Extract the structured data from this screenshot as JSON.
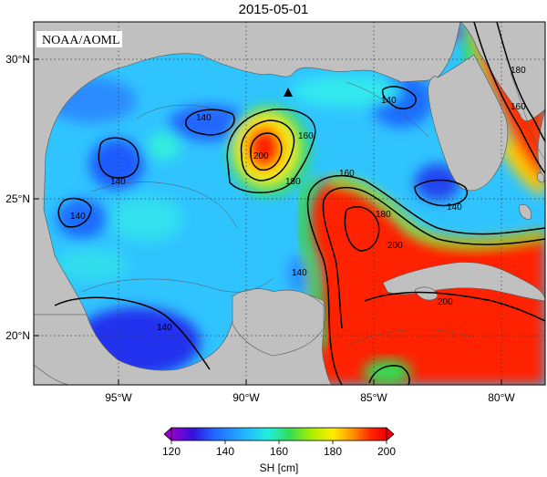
{
  "title": "2015-05-01",
  "credit": "NOAA/AOML",
  "map": {
    "lat_ticks": [
      "30°N",
      "25°N",
      "20°N"
    ],
    "lon_ticks": [
      "95°W",
      "90°W",
      "85°W",
      "80°W"
    ],
    "contour_labels": [
      "140",
      "140",
      "140",
      "140",
      "140",
      "140",
      "140",
      "160",
      "160",
      "160",
      "180",
      "180",
      "180",
      "200",
      "200",
      "200"
    ],
    "land_color": "#c0c0c0",
    "marker": "triangle"
  },
  "colorbar": {
    "ticks": [
      "120",
      "140",
      "160",
      "180",
      "200"
    ],
    "label": "SH [cm]",
    "colors": [
      "#9900cc",
      "#3311dd",
      "#2266ff",
      "#22bbff",
      "#22eedd",
      "#33dd55",
      "#aaee00",
      "#ffee00",
      "#ff8800",
      "#ff2200",
      "#ee0000"
    ]
  }
}
